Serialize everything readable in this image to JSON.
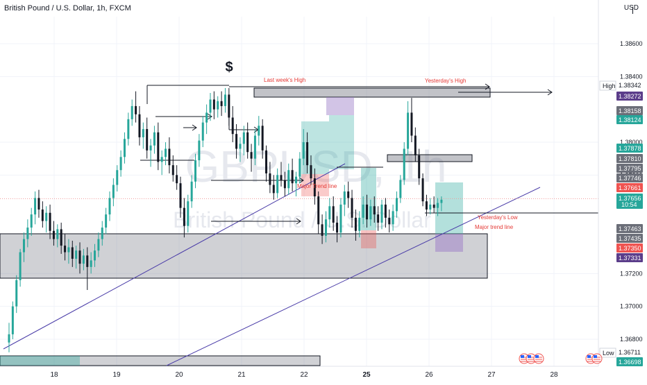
{
  "header": {
    "title": "British Pound / U.S. Dollar, 1h, FXCM",
    "currency": "USD"
  },
  "watermark": {
    "symbol": "GBPUSD, 1h",
    "name": "British Pound / U.S. Dollar"
  },
  "chart_data": {
    "type": "candlestick",
    "symbol": "GBPUSD",
    "timeframe": "1h",
    "ylim": [
      1.3669,
      1.3868
    ],
    "y_ticks": [
      "1.38600",
      "1.38400",
      "1.38000",
      "1.37800",
      "1.37200",
      "1.37000",
      "1.36800"
    ],
    "x_ticks": [
      "18",
      "19",
      "20",
      "21",
      "22",
      "25",
      "26",
      "27",
      "28"
    ],
    "x_ticks_bold": [
      "25"
    ],
    "candles": [
      [
        1.3678,
        1.369,
        1.3672,
        1.3683
      ],
      [
        1.3683,
        1.3703,
        1.368,
        1.37
      ],
      [
        1.37,
        1.3719,
        1.3696,
        1.3716
      ],
      [
        1.3716,
        1.3735,
        1.3712,
        1.3733
      ],
      [
        1.3733,
        1.3745,
        1.3727,
        1.3741
      ],
      [
        1.3741,
        1.3753,
        1.3736,
        1.3748
      ],
      [
        1.3748,
        1.376,
        1.3743,
        1.3756
      ],
      [
        1.3756,
        1.377,
        1.375,
        1.3766
      ],
      [
        1.3766,
        1.3771,
        1.3754,
        1.3759
      ],
      [
        1.3759,
        1.3764,
        1.3748,
        1.3752
      ],
      [
        1.3752,
        1.3761,
        1.3745,
        1.3757
      ],
      [
        1.3757,
        1.3762,
        1.3741,
        1.3746
      ],
      [
        1.3746,
        1.3752,
        1.3737,
        1.3741
      ],
      [
        1.3741,
        1.375,
        1.3736,
        1.3747
      ],
      [
        1.3747,
        1.3751,
        1.3732,
        1.3737
      ],
      [
        1.3737,
        1.3744,
        1.3728,
        1.3733
      ],
      [
        1.3733,
        1.3741,
        1.3726,
        1.3736
      ],
      [
        1.3736,
        1.374,
        1.3724,
        1.3729
      ],
      [
        1.3729,
        1.3737,
        1.3723,
        1.3734
      ],
      [
        1.3734,
        1.3739,
        1.372,
        1.3726
      ],
      [
        1.3726,
        1.3735,
        1.3722,
        1.3731
      ],
      [
        1.3731,
        1.3736,
        1.371,
        1.3724
      ],
      [
        1.3724,
        1.3733,
        1.372,
        1.3728
      ],
      [
        1.3728,
        1.3738,
        1.3724,
        1.3734
      ],
      [
        1.3734,
        1.3745,
        1.373,
        1.3741
      ],
      [
        1.3741,
        1.3752,
        1.3737,
        1.3748
      ],
      [
        1.3748,
        1.376,
        1.3744,
        1.3756
      ],
      [
        1.3756,
        1.377,
        1.3752,
        1.3766
      ],
      [
        1.3766,
        1.3778,
        1.3761,
        1.3774
      ],
      [
        1.3774,
        1.3786,
        1.377,
        1.3783
      ],
      [
        1.3783,
        1.3795,
        1.3779,
        1.3791
      ],
      [
        1.3791,
        1.3806,
        1.3787,
        1.3802
      ],
      [
        1.3802,
        1.3818,
        1.3798,
        1.3814
      ],
      [
        1.3814,
        1.3826,
        1.381,
        1.3822
      ],
      [
        1.3822,
        1.3831,
        1.3812,
        1.3817
      ],
      [
        1.3817,
        1.3822,
        1.3798,
        1.3803
      ],
      [
        1.3803,
        1.3812,
        1.3796,
        1.3808
      ],
      [
        1.3808,
        1.3815,
        1.379,
        1.3795
      ],
      [
        1.3795,
        1.3802,
        1.3785,
        1.3798
      ],
      [
        1.3798,
        1.381,
        1.3793,
        1.3806
      ],
      [
        1.3806,
        1.3812,
        1.3783,
        1.3788
      ],
      [
        1.3788,
        1.3795,
        1.378,
        1.3791
      ],
      [
        1.3791,
        1.38,
        1.3786,
        1.3796
      ],
      [
        1.3796,
        1.3803,
        1.3781,
        1.3786
      ],
      [
        1.3786,
        1.3792,
        1.3776,
        1.378
      ],
      [
        1.378,
        1.3786,
        1.3771,
        1.3775
      ],
      [
        1.3775,
        1.3779,
        1.3754,
        1.376
      ],
      [
        1.376,
        1.3766,
        1.3742,
        1.3749
      ],
      [
        1.3749,
        1.3768,
        1.3745,
        1.3764
      ],
      [
        1.3764,
        1.378,
        1.376,
        1.3776
      ],
      [
        1.3776,
        1.3793,
        1.3772,
        1.3789
      ],
      [
        1.3789,
        1.3805,
        1.3785,
        1.3801
      ],
      [
        1.3801,
        1.3816,
        1.3797,
        1.3812
      ],
      [
        1.3812,
        1.3823,
        1.3805,
        1.3818
      ],
      [
        1.3818,
        1.383,
        1.3813,
        1.3826
      ],
      [
        1.3826,
        1.3831,
        1.3814,
        1.382
      ],
      [
        1.382,
        1.3828,
        1.3815,
        1.3825
      ],
      [
        1.3825,
        1.3831,
        1.3816,
        1.3822
      ],
      [
        1.3822,
        1.3833,
        1.3818,
        1.3829
      ],
      [
        1.3829,
        1.3833,
        1.381,
        1.3815
      ],
      [
        1.3815,
        1.3822,
        1.38,
        1.3805
      ],
      [
        1.3805,
        1.3811,
        1.379,
        1.3796
      ],
      [
        1.3796,
        1.3803,
        1.3788,
        1.3799
      ],
      [
        1.3799,
        1.381,
        1.3792,
        1.3806
      ],
      [
        1.3806,
        1.3812,
        1.379,
        1.3794
      ],
      [
        1.3794,
        1.3799,
        1.3782,
        1.379
      ],
      [
        1.379,
        1.3808,
        1.3786,
        1.3804
      ],
      [
        1.3804,
        1.3816,
        1.3798,
        1.381
      ],
      [
        1.381,
        1.3814,
        1.379,
        1.3795
      ],
      [
        1.3795,
        1.3798,
        1.3776,
        1.3781
      ],
      [
        1.3781,
        1.3788,
        1.3769,
        1.3774
      ],
      [
        1.3774,
        1.378,
        1.3765,
        1.3769
      ],
      [
        1.3769,
        1.3784,
        1.3766,
        1.378
      ],
      [
        1.378,
        1.3788,
        1.3773,
        1.3777
      ],
      [
        1.3777,
        1.3782,
        1.3767,
        1.3772
      ],
      [
        1.3772,
        1.3787,
        1.3768,
        1.3783
      ],
      [
        1.3783,
        1.379,
        1.377,
        1.3775
      ],
      [
        1.3775,
        1.3782,
        1.3767,
        1.3779
      ],
      [
        1.3779,
        1.3794,
        1.3775,
        1.379
      ],
      [
        1.379,
        1.3808,
        1.3786,
        1.38
      ],
      [
        1.38,
        1.3806,
        1.3781,
        1.3786
      ],
      [
        1.3786,
        1.3792,
        1.3774,
        1.3778
      ],
      [
        1.3778,
        1.3784,
        1.3762,
        1.3767
      ],
      [
        1.3767,
        1.377,
        1.3744,
        1.375
      ],
      [
        1.375,
        1.3756,
        1.3738,
        1.3743
      ],
      [
        1.3743,
        1.3758,
        1.3739,
        1.3753
      ],
      [
        1.3753,
        1.3766,
        1.3748,
        1.3761
      ],
      [
        1.3761,
        1.3767,
        1.3746,
        1.3751
      ],
      [
        1.3751,
        1.3755,
        1.3739,
        1.3745
      ],
      [
        1.3745,
        1.3766,
        1.3742,
        1.3762
      ],
      [
        1.3762,
        1.3774,
        1.3755,
        1.377
      ],
      [
        1.377,
        1.3776,
        1.376,
        1.3766
      ],
      [
        1.3766,
        1.3771,
        1.3748,
        1.3754
      ],
      [
        1.3754,
        1.3759,
        1.374,
        1.3746
      ],
      [
        1.3746,
        1.3758,
        1.3742,
        1.3754
      ],
      [
        1.3754,
        1.3767,
        1.375,
        1.3762
      ],
      [
        1.3762,
        1.3768,
        1.3748,
        1.3753
      ],
      [
        1.3753,
        1.3765,
        1.3749,
        1.3761
      ],
      [
        1.3761,
        1.3767,
        1.3751,
        1.3756
      ],
      [
        1.3756,
        1.3761,
        1.3746,
        1.3751
      ],
      [
        1.3751,
        1.3765,
        1.3747,
        1.3762
      ],
      [
        1.3762,
        1.3766,
        1.3748,
        1.3754
      ],
      [
        1.3754,
        1.3759,
        1.3745,
        1.375
      ],
      [
        1.375,
        1.3762,
        1.3746,
        1.3758
      ],
      [
        1.3758,
        1.377,
        1.3754,
        1.3766
      ],
      [
        1.3766,
        1.378,
        1.3763,
        1.3777
      ],
      [
        1.3777,
        1.38,
        1.3774,
        1.3796
      ],
      [
        1.3796,
        1.3825,
        1.3792,
        1.3818
      ],
      [
        1.3818,
        1.3827,
        1.38,
        1.3804
      ],
      [
        1.3804,
        1.3809,
        1.3788,
        1.3792
      ],
      [
        1.3792,
        1.3796,
        1.3774,
        1.3778
      ],
      [
        1.3778,
        1.3781,
        1.3761,
        1.3764
      ],
      [
        1.3764,
        1.3768,
        1.3755,
        1.3759
      ],
      [
        1.3759,
        1.3766,
        1.3756,
        1.3762
      ],
      [
        1.3762,
        1.3767,
        1.3757,
        1.376
      ],
      [
        1.376,
        1.3766,
        1.3755,
        1.3763
      ],
      [
        1.3763,
        1.3767,
        1.3758,
        1.3765
      ]
    ],
    "price_scale_labels": [
      {
        "text": "1.38342",
        "kind": "plain"
      },
      {
        "text": "1.38272",
        "kind": "purple"
      },
      {
        "text": "1.38158",
        "kind": "gray"
      },
      {
        "text": "1.38124",
        "kind": "green"
      },
      {
        "text": "1.37878",
        "kind": "green"
      },
      {
        "text": "1.37810",
        "kind": "gray"
      },
      {
        "text": "1.37795",
        "kind": "gray"
      },
      {
        "text": "1.37746",
        "kind": "gray"
      },
      {
        "text": "1.37661",
        "kind": "red"
      },
      {
        "text": "1.37656",
        "kind": "current"
      },
      {
        "text": "1.37463",
        "kind": "gray"
      },
      {
        "text": "1.37435",
        "kind": "gray"
      },
      {
        "text": "1.37350",
        "kind": "red"
      },
      {
        "text": "1.37331",
        "kind": "purple"
      },
      {
        "text": "1.36711",
        "kind": "plain"
      },
      {
        "text": "1.36698",
        "kind": "green"
      }
    ],
    "high_label": "High",
    "low_label": "Low",
    "countdown": "10:54",
    "annotations": {
      "dollar": "$",
      "last_week_high": "Last week's High",
      "yesterday_high": "Yesterday's High",
      "major_trend_line_1": "Major Trend line",
      "yesterday_low": "Yesterday's Low",
      "major_trend_line_2": "Major trend line"
    },
    "colors": {
      "up": "#26a69a",
      "down": "#131722",
      "grid": "#f0f3fa",
      "trend_line": "#4a3ca8",
      "annotation_red": "#e53935",
      "zone_gray": "#9598a1",
      "long_tp": "#26a69a",
      "short_sl": "#ef5350",
      "purple": "#9c7cc8"
    },
    "grid": true
  }
}
